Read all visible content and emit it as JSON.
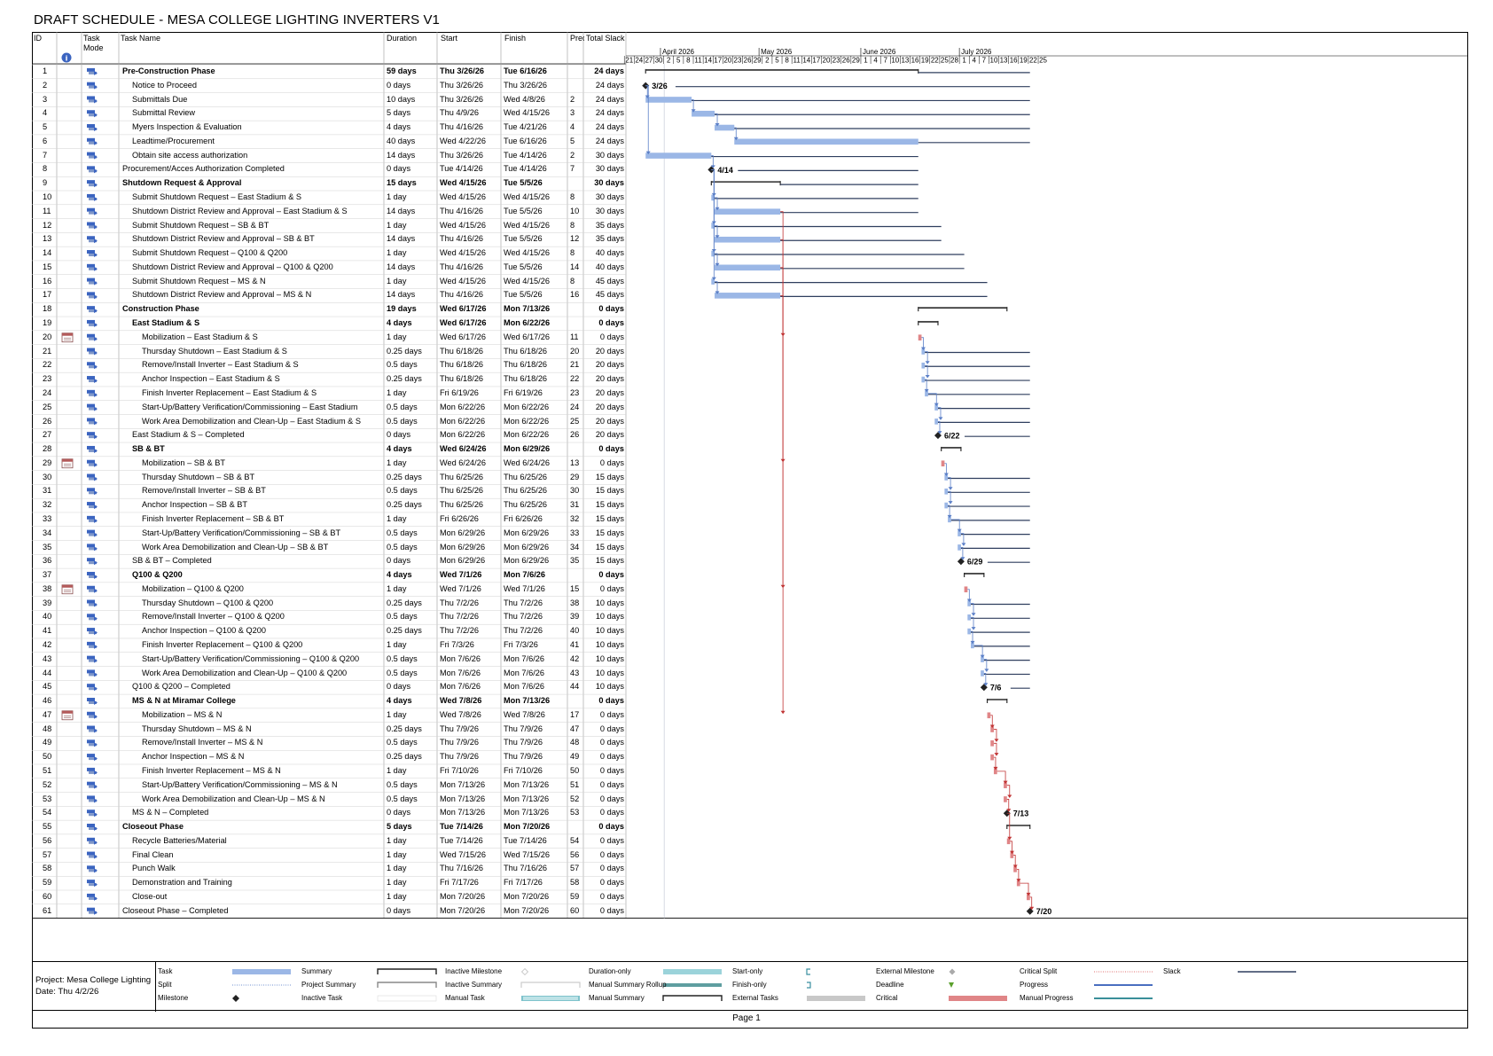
{
  "title": "DRAFT SCHEDULE - MESA COLLEGE LIGHTING INVERTERS V1",
  "columns": {
    "id": "ID",
    "task_mode": "Task Mode",
    "task_name": "Task Name",
    "duration": "Duration",
    "start": "Start",
    "finish": "Finish",
    "pred": "Prec",
    "total_slack": "Total Slack"
  },
  "timeline": {
    "months": [
      {
        "label": "April 2026",
        "at": "4/1"
      },
      {
        "label": "May 2026",
        "at": "5/1"
      },
      {
        "label": "June 2026",
        "at": "6/1"
      },
      {
        "label": "July 2026",
        "at": "7/1"
      }
    ],
    "days": [
      "21",
      "24",
      "27",
      "30",
      "2",
      "5",
      "8",
      "11",
      "14",
      "17",
      "20",
      "23",
      "26",
      "29",
      "2",
      "5",
      "8",
      "11",
      "14",
      "17",
      "20",
      "23",
      "26",
      "29",
      "1",
      "4",
      "7",
      "10",
      "13",
      "16",
      "19",
      "22",
      "25",
      "28",
      "1",
      "4",
      "7",
      "10",
      "13",
      "16",
      "19",
      "22",
      "25"
    ]
  },
  "colors": {
    "task": "#9bb7e6",
    "critical": "#e08587",
    "summary": "#2b2b2b",
    "slack": "#2f3e5e",
    "link": "#5b7fc7"
  },
  "tasks": [
    {
      "id": "1",
      "name": "Pre-Construction Phase",
      "dur": "59 days",
      "start": "Thu 3/26/26",
      "finish": "Tue 6/16/26",
      "pred": "",
      "slack": "24 days",
      "lvl": 0,
      "bold": true
    },
    {
      "id": "2",
      "name": "Notice to Proceed",
      "dur": "0 days",
      "start": "Thu 3/26/26",
      "finish": "Thu 3/26/26",
      "pred": "",
      "slack": "24 days",
      "lvl": 1,
      "ms": "3/26"
    },
    {
      "id": "3",
      "name": "Submittals Due",
      "dur": "10 days",
      "start": "Thu 3/26/26",
      "finish": "Wed 4/8/26",
      "pred": "2",
      "slack": "24 days",
      "lvl": 1
    },
    {
      "id": "4",
      "name": "Submittal Review",
      "dur": "5 days",
      "start": "Thu 4/9/26",
      "finish": "Wed 4/15/26",
      "pred": "3",
      "slack": "24 days",
      "lvl": 1
    },
    {
      "id": "5",
      "name": "Myers Inspection & Evaluation",
      "dur": "4 days",
      "start": "Thu 4/16/26",
      "finish": "Tue 4/21/26",
      "pred": "4",
      "slack": "24 days",
      "lvl": 1
    },
    {
      "id": "6",
      "name": "Leadtime/Procurement",
      "dur": "40 days",
      "start": "Wed 4/22/26",
      "finish": "Tue 6/16/26",
      "pred": "5",
      "slack": "24 days",
      "lvl": 1
    },
    {
      "id": "7",
      "name": "Obtain site access authorization",
      "dur": "14 days",
      "start": "Thu 3/26/26",
      "finish": "Tue 4/14/26",
      "pred": "2",
      "slack": "30 days",
      "lvl": 1
    },
    {
      "id": "8",
      "name": "Procurement/Acces Authorization Completed",
      "dur": "0 days",
      "start": "Tue 4/14/26",
      "finish": "Tue 4/14/26",
      "pred": "7",
      "slack": "30 days",
      "lvl": 0,
      "ms": "4/14"
    },
    {
      "id": "9",
      "name": "Shutdown Request & Approval",
      "dur": "15 days",
      "start": "Wed 4/15/26",
      "finish": "Tue 5/5/26",
      "pred": "",
      "slack": "30 days",
      "lvl": 0,
      "bold": true
    },
    {
      "id": "10",
      "name": "Submit Shutdown Request – East Stadium & S",
      "dur": "1 day",
      "start": "Wed 4/15/26",
      "finish": "Wed 4/15/26",
      "pred": "8",
      "slack": "30 days",
      "lvl": 1
    },
    {
      "id": "11",
      "name": "Shutdown District Review and Approval – East Stadium & S",
      "dur": "14 days",
      "start": "Thu 4/16/26",
      "finish": "Tue 5/5/26",
      "pred": "10",
      "slack": "30 days",
      "lvl": 1
    },
    {
      "id": "12",
      "name": "Submit Shutdown Request – SB & BT",
      "dur": "1 day",
      "start": "Wed 4/15/26",
      "finish": "Wed 4/15/26",
      "pred": "8",
      "slack": "35 days",
      "lvl": 1
    },
    {
      "id": "13",
      "name": "Shutdown District Review and Approval – SB & BT",
      "dur": "14 days",
      "start": "Thu 4/16/26",
      "finish": "Tue 5/5/26",
      "pred": "12",
      "slack": "35 days",
      "lvl": 1
    },
    {
      "id": "14",
      "name": "Submit Shutdown Request – Q100 & Q200",
      "dur": "1 day",
      "start": "Wed 4/15/26",
      "finish": "Wed 4/15/26",
      "pred": "8",
      "slack": "40 days",
      "lvl": 1
    },
    {
      "id": "15",
      "name": "Shutdown District Review and Approval – Q100 & Q200",
      "dur": "14 days",
      "start": "Thu 4/16/26",
      "finish": "Tue 5/5/26",
      "pred": "14",
      "slack": "40 days",
      "lvl": 1
    },
    {
      "id": "16",
      "name": "Submit Shutdown Request – MS & N",
      "dur": "1 day",
      "start": "Wed 4/15/26",
      "finish": "Wed 4/15/26",
      "pred": "8",
      "slack": "45 days",
      "lvl": 1
    },
    {
      "id": "17",
      "name": "Shutdown District Review and Approval – MS & N",
      "dur": "14 days",
      "start": "Thu 4/16/26",
      "finish": "Tue 5/5/26",
      "pred": "16",
      "slack": "45 days",
      "lvl": 1
    },
    {
      "id": "18",
      "name": "Construction Phase",
      "dur": "19 days",
      "start": "Wed 6/17/26",
      "finish": "Mon 7/13/26",
      "pred": "",
      "slack": "0 days",
      "lvl": 0,
      "bold": true
    },
    {
      "id": "19",
      "name": "East Stadium & S",
      "dur": "4 days",
      "start": "Wed 6/17/26",
      "finish": "Mon 6/22/26",
      "pred": "",
      "slack": "0 days",
      "lvl": 1,
      "bold": true
    },
    {
      "id": "20",
      "name": "Mobilization – East Stadium & S",
      "dur": "1 day",
      "start": "Wed 6/17/26",
      "finish": "Wed 6/17/26",
      "pred": "11",
      "slack": "0 days",
      "lvl": 2,
      "cal": true
    },
    {
      "id": "21",
      "name": "Thursday Shutdown – East Stadium & S",
      "dur": "0.25 days",
      "start": "Thu 6/18/26",
      "finish": "Thu 6/18/26",
      "pred": "20",
      "slack": "20 days",
      "lvl": 2
    },
    {
      "id": "22",
      "name": "Remove/Install Inverter – East Stadium & S",
      "dur": "0.5 days",
      "start": "Thu 6/18/26",
      "finish": "Thu 6/18/26",
      "pred": "21",
      "slack": "20 days",
      "lvl": 2
    },
    {
      "id": "23",
      "name": "Anchor Inspection – East Stadium & S",
      "dur": "0.25 days",
      "start": "Thu 6/18/26",
      "finish": "Thu 6/18/26",
      "pred": "22",
      "slack": "20 days",
      "lvl": 2
    },
    {
      "id": "24",
      "name": "Finish Inverter Replacement – East Stadium & S",
      "dur": "1 day",
      "start": "Fri 6/19/26",
      "finish": "Fri 6/19/26",
      "pred": "23",
      "slack": "20 days",
      "lvl": 2
    },
    {
      "id": "25",
      "name": "Start-Up/Battery Verification/Commissioning – East Stadium",
      "dur": "0.5 days",
      "start": "Mon 6/22/26",
      "finish": "Mon 6/22/26",
      "pred": "24",
      "slack": "20 days",
      "lvl": 2
    },
    {
      "id": "26",
      "name": "Work Area Demobilization and Clean-Up – East Stadium & S",
      "dur": "0.5 days",
      "start": "Mon 6/22/26",
      "finish": "Mon 6/22/26",
      "pred": "25",
      "slack": "20 days",
      "lvl": 2
    },
    {
      "id": "27",
      "name": "East Stadium & S – Completed",
      "dur": "0 days",
      "start": "Mon 6/22/26",
      "finish": "Mon 6/22/26",
      "pred": "26",
      "slack": "20 days",
      "lvl": 1,
      "ms": "6/22"
    },
    {
      "id": "28",
      "name": "SB & BT",
      "dur": "4 days",
      "start": "Wed 6/24/26",
      "finish": "Mon 6/29/26",
      "pred": "",
      "slack": "0 days",
      "lvl": 1,
      "bold": true
    },
    {
      "id": "29",
      "name": "Mobilization – SB & BT",
      "dur": "1 day",
      "start": "Wed 6/24/26",
      "finish": "Wed 6/24/26",
      "pred": "13",
      "slack": "0 days",
      "lvl": 2,
      "cal": true
    },
    {
      "id": "30",
      "name": "Thursday Shutdown – SB & BT",
      "dur": "0.25 days",
      "start": "Thu 6/25/26",
      "finish": "Thu 6/25/26",
      "pred": "29",
      "slack": "15 days",
      "lvl": 2
    },
    {
      "id": "31",
      "name": "Remove/Install Inverter – SB & BT",
      "dur": "0.5 days",
      "start": "Thu 6/25/26",
      "finish": "Thu 6/25/26",
      "pred": "30",
      "slack": "15 days",
      "lvl": 2
    },
    {
      "id": "32",
      "name": "Anchor Inspection – SB & BT",
      "dur": "0.25 days",
      "start": "Thu 6/25/26",
      "finish": "Thu 6/25/26",
      "pred": "31",
      "slack": "15 days",
      "lvl": 2
    },
    {
      "id": "33",
      "name": "Finish Inverter Replacement – SB & BT",
      "dur": "1 day",
      "start": "Fri 6/26/26",
      "finish": "Fri 6/26/26",
      "pred": "32",
      "slack": "15 days",
      "lvl": 2
    },
    {
      "id": "34",
      "name": "Start-Up/Battery Verification/Commissioning – SB & BT",
      "dur": "0.5 days",
      "start": "Mon 6/29/26",
      "finish": "Mon 6/29/26",
      "pred": "33",
      "slack": "15 days",
      "lvl": 2
    },
    {
      "id": "35",
      "name": "Work Area Demobilization and Clean-Up – SB & BT",
      "dur": "0.5 days",
      "start": "Mon 6/29/26",
      "finish": "Mon 6/29/26",
      "pred": "34",
      "slack": "15 days",
      "lvl": 2
    },
    {
      "id": "36",
      "name": "SB & BT – Completed",
      "dur": "0 days",
      "start": "Mon 6/29/26",
      "finish": "Mon 6/29/26",
      "pred": "35",
      "slack": "15 days",
      "lvl": 1,
      "ms": "6/29"
    },
    {
      "id": "37",
      "name": "Q100 & Q200",
      "dur": "4 days",
      "start": "Wed 7/1/26",
      "finish": "Mon 7/6/26",
      "pred": "",
      "slack": "0 days",
      "lvl": 1,
      "bold": true
    },
    {
      "id": "38",
      "name": "Mobilization – Q100 & Q200",
      "dur": "1 day",
      "start": "Wed 7/1/26",
      "finish": "Wed 7/1/26",
      "pred": "15",
      "slack": "0 days",
      "lvl": 2,
      "cal": true
    },
    {
      "id": "39",
      "name": "Thursday Shutdown – Q100 & Q200",
      "dur": "0.25 days",
      "start": "Thu 7/2/26",
      "finish": "Thu 7/2/26",
      "pred": "38",
      "slack": "10 days",
      "lvl": 2
    },
    {
      "id": "40",
      "name": "Remove/Install Inverter – Q100 & Q200",
      "dur": "0.5 days",
      "start": "Thu 7/2/26",
      "finish": "Thu 7/2/26",
      "pred": "39",
      "slack": "10 days",
      "lvl": 2
    },
    {
      "id": "41",
      "name": "Anchor Inspection – Q100 & Q200",
      "dur": "0.25 days",
      "start": "Thu 7/2/26",
      "finish": "Thu 7/2/26",
      "pred": "40",
      "slack": "10 days",
      "lvl": 2
    },
    {
      "id": "42",
      "name": "Finish Inverter Replacement – Q100 & Q200",
      "dur": "1 day",
      "start": "Fri 7/3/26",
      "finish": "Fri 7/3/26",
      "pred": "41",
      "slack": "10 days",
      "lvl": 2
    },
    {
      "id": "43",
      "name": "Start-Up/Battery Verification/Commissioning – Q100 & Q200",
      "dur": "0.5 days",
      "start": "Mon 7/6/26",
      "finish": "Mon 7/6/26",
      "pred": "42",
      "slack": "10 days",
      "lvl": 2
    },
    {
      "id": "44",
      "name": "Work Area Demobilization and Clean-Up – Q100 & Q200",
      "dur": "0.5 days",
      "start": "Mon 7/6/26",
      "finish": "Mon 7/6/26",
      "pred": "43",
      "slack": "10 days",
      "lvl": 2
    },
    {
      "id": "45",
      "name": "Q100 & Q200 – Completed",
      "dur": "0 days",
      "start": "Mon 7/6/26",
      "finish": "Mon 7/6/26",
      "pred": "44",
      "slack": "10 days",
      "lvl": 1,
      "ms": "7/6"
    },
    {
      "id": "46",
      "name": "MS & N at Miramar College",
      "dur": "4 days",
      "start": "Wed 7/8/26",
      "finish": "Mon 7/13/26",
      "pred": "",
      "slack": "0 days",
      "lvl": 1,
      "bold": true
    },
    {
      "id": "47",
      "name": "Mobilization – MS & N",
      "dur": "1 day",
      "start": "Wed 7/8/26",
      "finish": "Wed 7/8/26",
      "pred": "17",
      "slack": "0 days",
      "lvl": 2,
      "cal": true
    },
    {
      "id": "48",
      "name": "Thursday Shutdown – MS & N",
      "dur": "0.25 days",
      "start": "Thu 7/9/26",
      "finish": "Thu 7/9/26",
      "pred": "47",
      "slack": "0 days",
      "lvl": 2
    },
    {
      "id": "49",
      "name": "Remove/Install Inverter – MS & N",
      "dur": "0.5 days",
      "start": "Thu 7/9/26",
      "finish": "Thu 7/9/26",
      "pred": "48",
      "slack": "0 days",
      "lvl": 2
    },
    {
      "id": "50",
      "name": "Anchor Inspection – MS & N",
      "dur": "0.25 days",
      "start": "Thu 7/9/26",
      "finish": "Thu 7/9/26",
      "pred": "49",
      "slack": "0 days",
      "lvl": 2
    },
    {
      "id": "51",
      "name": "Finish Inverter Replacement – MS & N",
      "dur": "1 day",
      "start": "Fri 7/10/26",
      "finish": "Fri 7/10/26",
      "pred": "50",
      "slack": "0 days",
      "lvl": 2
    },
    {
      "id": "52",
      "name": "Start-Up/Battery Verification/Commissioning – MS & N",
      "dur": "0.5 days",
      "start": "Mon 7/13/26",
      "finish": "Mon 7/13/26",
      "pred": "51",
      "slack": "0 days",
      "lvl": 2
    },
    {
      "id": "53",
      "name": "Work Area Demobilization and Clean-Up – MS & N",
      "dur": "0.5 days",
      "start": "Mon 7/13/26",
      "finish": "Mon 7/13/26",
      "pred": "52",
      "slack": "0 days",
      "lvl": 2
    },
    {
      "id": "54",
      "name": "MS & N – Completed",
      "dur": "0 days",
      "start": "Mon 7/13/26",
      "finish": "Mon 7/13/26",
      "pred": "53",
      "slack": "0 days",
      "lvl": 1,
      "ms": "7/13"
    },
    {
      "id": "55",
      "name": "Closeout Phase",
      "dur": "5 days",
      "start": "Tue 7/14/26",
      "finish": "Mon 7/20/26",
      "pred": "",
      "slack": "0 days",
      "lvl": 0,
      "bold": true
    },
    {
      "id": "56",
      "name": "Recycle Batteries/Material",
      "dur": "1 day",
      "start": "Tue 7/14/26",
      "finish": "Tue 7/14/26",
      "pred": "54",
      "slack": "0 days",
      "lvl": 1
    },
    {
      "id": "57",
      "name": "Final Clean",
      "dur": "1 day",
      "start": "Wed 7/15/26",
      "finish": "Wed 7/15/26",
      "pred": "56",
      "slack": "0 days",
      "lvl": 1
    },
    {
      "id": "58",
      "name": "Punch Walk",
      "dur": "1 day",
      "start": "Thu 7/16/26",
      "finish": "Thu 7/16/26",
      "pred": "57",
      "slack": "0 days",
      "lvl": 1
    },
    {
      "id": "59",
      "name": "Demonstration and Training",
      "dur": "1 day",
      "start": "Fri 7/17/26",
      "finish": "Fri 7/17/26",
      "pred": "58",
      "slack": "0 days",
      "lvl": 1
    },
    {
      "id": "60",
      "name": "Close-out",
      "dur": "1 day",
      "start": "Mon 7/20/26",
      "finish": "Mon 7/20/26",
      "pred": "59",
      "slack": "0 days",
      "lvl": 1
    },
    {
      "id": "61",
      "name": "Closeout Phase – Completed",
      "dur": "0 days",
      "start": "Mon 7/20/26",
      "finish": "Mon 7/20/26",
      "pred": "60",
      "slack": "0 days",
      "lvl": 0,
      "ms": "7/20"
    }
  ],
  "legend": {
    "project": "Project: Mesa College Lighting",
    "date": "Date: Thu 4/2/26",
    "items": [
      {
        "label": "Task",
        "kind": "task"
      },
      {
        "label": "Split",
        "kind": "split"
      },
      {
        "label": "Milestone",
        "kind": "milestone"
      },
      {
        "label": "Summary",
        "kind": "summary"
      },
      {
        "label": "Project Summary",
        "kind": "projsummary"
      },
      {
        "label": "Inactive Task",
        "kind": "inactivetask"
      },
      {
        "label": "Inactive Milestone",
        "kind": "inactivems"
      },
      {
        "label": "Inactive Summary",
        "kind": "inactivesum"
      },
      {
        "label": "Manual Task",
        "kind": "manualtask"
      },
      {
        "label": "Duration-only",
        "kind": "duronly"
      },
      {
        "label": "Manual Summary Rollup",
        "kind": "msrollup"
      },
      {
        "label": "Manual Summary",
        "kind": "msummary"
      },
      {
        "label": "Start-only",
        "kind": "startonly"
      },
      {
        "label": "Finish-only",
        "kind": "finishonly"
      },
      {
        "label": "External Tasks",
        "kind": "exttask"
      },
      {
        "label": "External Milestone",
        "kind": "extms"
      },
      {
        "label": "Deadline",
        "kind": "deadline"
      },
      {
        "label": "Critical",
        "kind": "critical"
      },
      {
        "label": "Critical Split",
        "kind": "critsplit"
      },
      {
        "label": "Progress",
        "kind": "progress"
      },
      {
        "label": "Manual Progress",
        "kind": "manprogress"
      },
      {
        "label": "Slack",
        "kind": "slack"
      }
    ]
  },
  "page": "Page 1"
}
